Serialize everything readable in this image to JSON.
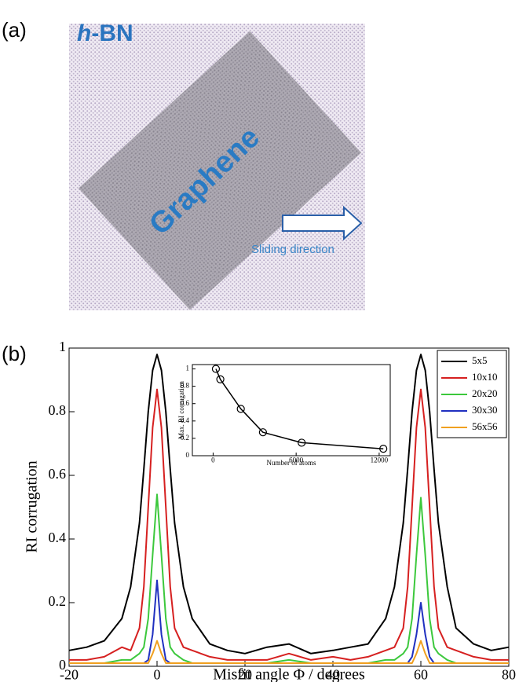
{
  "panel_labels": [
    "(a)",
    "(b)"
  ],
  "panel_a": {
    "substrate_label": {
      "italic": "h",
      "rest": "-BN"
    },
    "flake_label": "Graphene",
    "arrow_label": "Sliding direction"
  },
  "chart_data": [
    {
      "type": "line",
      "xlabel": "Misfit angle Φ / degrees",
      "ylabel": "RI corrugation",
      "x": [
        -20,
        -16,
        -12,
        -8,
        -6,
        -4,
        -3,
        -2,
        -1,
        0,
        1,
        2,
        3,
        4,
        6,
        8,
        12,
        16,
        20,
        25,
        30,
        35,
        40,
        44,
        48,
        52,
        54,
        56,
        57,
        58,
        59,
        60,
        61,
        62,
        63,
        64,
        66,
        68,
        72,
        76,
        80
      ],
      "series": [
        {
          "name": "5x5",
          "color": "#000000",
          "values": [
            0.05,
            0.06,
            0.08,
            0.15,
            0.25,
            0.45,
            0.62,
            0.8,
            0.93,
            0.98,
            0.93,
            0.8,
            0.62,
            0.45,
            0.25,
            0.15,
            0.07,
            0.05,
            0.04,
            0.06,
            0.07,
            0.04,
            0.05,
            0.06,
            0.07,
            0.15,
            0.25,
            0.45,
            0.62,
            0.8,
            0.93,
            0.98,
            0.93,
            0.8,
            0.62,
            0.45,
            0.25,
            0.12,
            0.07,
            0.05,
            0.06
          ]
        },
        {
          "name": "10x10",
          "color": "#d62020",
          "values": [
            0.02,
            0.02,
            0.03,
            0.06,
            0.05,
            0.12,
            0.25,
            0.5,
            0.75,
            0.87,
            0.75,
            0.5,
            0.25,
            0.12,
            0.06,
            0.05,
            0.03,
            0.02,
            0.02,
            0.02,
            0.04,
            0.02,
            0.03,
            0.02,
            0.03,
            0.05,
            0.06,
            0.12,
            0.25,
            0.5,
            0.75,
            0.87,
            0.75,
            0.5,
            0.25,
            0.12,
            0.06,
            0.05,
            0.03,
            0.02,
            0.02
          ]
        },
        {
          "name": "20x20",
          "color": "#3cc83c",
          "values": [
            0.01,
            0.01,
            0.01,
            0.02,
            0.02,
            0.04,
            0.06,
            0.15,
            0.35,
            0.54,
            0.35,
            0.15,
            0.06,
            0.04,
            0.02,
            0.01,
            0.01,
            0.01,
            0.01,
            0.01,
            0.02,
            0.01,
            0.01,
            0.01,
            0.01,
            0.02,
            0.02,
            0.04,
            0.06,
            0.15,
            0.35,
            0.53,
            0.35,
            0.15,
            0.06,
            0.04,
            0.02,
            0.01,
            0.01,
            0.01,
            0.01
          ]
        },
        {
          "name": "30x30",
          "color": "#2030c0",
          "values": [
            0.01,
            0.01,
            0.01,
            0.01,
            0.01,
            0.01,
            0.01,
            0.02,
            0.1,
            0.27,
            0.1,
            0.02,
            0.01,
            0.01,
            0.01,
            0.01,
            0.01,
            0.01,
            0.01,
            0.01,
            0.01,
            0.01,
            0.01,
            0.01,
            0.01,
            0.01,
            0.01,
            0.01,
            0.01,
            0.03,
            0.1,
            0.2,
            0.1,
            0.03,
            0.01,
            0.01,
            0.01,
            0.01,
            0.01,
            0.01,
            0.01
          ]
        },
        {
          "name": "56x56",
          "color": "#f0a020",
          "values": [
            0.01,
            0.01,
            0.01,
            0.01,
            0.01,
            0.01,
            0.01,
            0.01,
            0.04,
            0.08,
            0.04,
            0.01,
            0.01,
            0.01,
            0.01,
            0.01,
            0.01,
            0.01,
            0.01,
            0.01,
            0.01,
            0.01,
            0.01,
            0.01,
            0.01,
            0.01,
            0.01,
            0.01,
            0.01,
            0.01,
            0.04,
            0.08,
            0.04,
            0.01,
            0.01,
            0.01,
            0.01,
            0.01,
            0.01,
            0.01,
            0.01
          ]
        }
      ],
      "xlim": [
        -20,
        80
      ],
      "ylim": [
        0,
        1
      ],
      "xticks": [
        -20,
        0,
        20,
        40,
        60,
        80
      ],
      "yticks": [
        0,
        0.2,
        0.4,
        0.6,
        0.8,
        1
      ],
      "legend": "upper right"
    },
    {
      "type": "line",
      "xlabel": "Number of atoms",
      "ylabel": "Max. RI corrugation",
      "x": [
        200,
        520,
        2000,
        3600,
        6400,
        12300
      ],
      "values": [
        1,
        0.88,
        0.54,
        0.27,
        0.15,
        0.08
      ],
      "color": "#000000",
      "marker": "circle",
      "xlim": [
        -1500,
        12800
      ],
      "ylim": [
        0,
        1.05
      ],
      "xticks": [
        0,
        6000,
        12000
      ],
      "yticks": [
        0,
        0.2,
        0.4,
        0.6,
        0.8,
        1
      ]
    }
  ]
}
